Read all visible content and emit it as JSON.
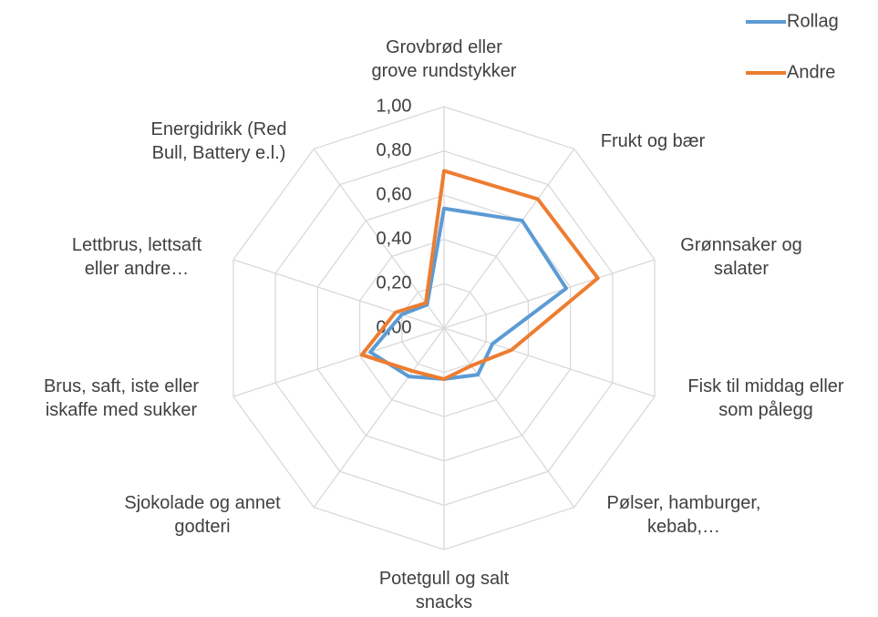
{
  "chart_data": {
    "type": "radar",
    "categories": [
      "Grovbrød eller grove rundstykker",
      "Frukt og bær",
      "Grønnsaker og salater",
      "Fisk til middag eller som pålegg",
      "Pølser, hamburger, kebab,…",
      "Potetgull og salt snacks",
      "Sjokolade og annet godteri",
      "Brus, saft, iste eller iskaffe med sukker",
      "Lettbrus, lettsaft eller andre…",
      "Energidrikk (Red Bull, Battery e.l.)"
    ],
    "series": [
      {
        "name": "Rollag",
        "color": "#5b9bd5",
        "values": [
          0.54,
          0.6,
          0.58,
          0.23,
          0.26,
          0.23,
          0.27,
          0.35,
          0.2,
          0.13
        ]
      },
      {
        "name": "Andre",
        "color": "#ed7d31",
        "values": [
          0.71,
          0.72,
          0.73,
          0.32,
          0.21,
          0.23,
          0.24,
          0.39,
          0.23,
          0.14
        ]
      }
    ],
    "ylim": [
      0,
      1
    ],
    "yticks": [
      {
        "value": 0,
        "label": "0,00"
      },
      {
        "value": 0.2,
        "label": "0,20"
      },
      {
        "value": 0.4,
        "label": "0,40"
      },
      {
        "value": 0.6,
        "label": "0,60"
      },
      {
        "value": 0.8,
        "label": "0,80"
      },
      {
        "value": 1,
        "label": "1,00"
      }
    ],
    "grid": true,
    "legend": "top-right"
  }
}
